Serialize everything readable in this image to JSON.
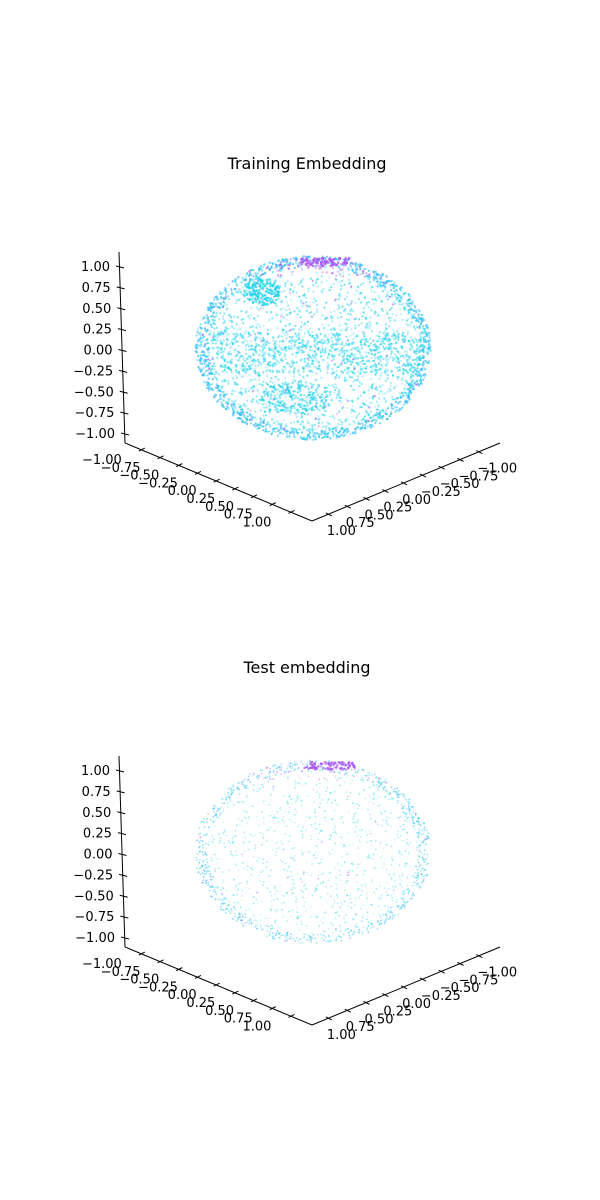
{
  "colors": {
    "primary": "#22d3ee",
    "secondary": "#a855f7",
    "edge": "#38bdf8",
    "axis": "#000000",
    "background": "#ffffff"
  },
  "chart_data": [
    {
      "type": "scatter3d",
      "title": "Training Embedding",
      "xlabel": "",
      "ylabel": "",
      "zlabel": "",
      "xlim": [
        -1.0,
        1.0
      ],
      "ylim": [
        -1.0,
        1.0
      ],
      "zlim": [
        -1.0,
        1.0
      ],
      "x_ticks": [
        "−1.00",
        "−0.75",
        "−0.50",
        "−0.25",
        "0.00",
        "0.25",
        "0.50",
        "0.75",
        "1.00"
      ],
      "y_ticks": [
        "−1.00",
        "−0.75",
        "−0.50",
        "−0.25",
        "0.00",
        "0.25",
        "0.50",
        "0.75",
        "1.00"
      ],
      "z_ticks": [
        "−1.00",
        "−0.75",
        "−0.50",
        "−0.25",
        "0.00",
        "0.25",
        "0.50",
        "0.75",
        "1.00"
      ],
      "z_tick_values": [
        -1.0,
        -0.75,
        -0.5,
        -0.25,
        0.0,
        0.25,
        0.5,
        0.75,
        1.0
      ],
      "surface": "unit sphere",
      "density": "dense",
      "grid": false,
      "colormap": "cool"
    },
    {
      "type": "scatter3d",
      "title": "Test embedding",
      "xlabel": "",
      "ylabel": "",
      "zlabel": "",
      "xlim": [
        -1.0,
        1.0
      ],
      "ylim": [
        -1.0,
        1.0
      ],
      "zlim": [
        -1.0,
        1.0
      ],
      "x_ticks": [
        "−1.00",
        "−0.75",
        "−0.50",
        "−0.25",
        "0.00",
        "0.25",
        "0.50",
        "0.75",
        "1.00"
      ],
      "y_ticks": [
        "−1.00",
        "−0.75",
        "−0.50",
        "−0.25",
        "0.00",
        "0.25",
        "0.50",
        "0.75",
        "1.00"
      ],
      "z_ticks": [
        "−1.00",
        "−0.75",
        "−0.50",
        "−0.25",
        "0.00",
        "0.25",
        "0.50",
        "0.75",
        "1.00"
      ],
      "z_tick_values": [
        -1.0,
        -0.75,
        -0.5,
        -0.25,
        0.0,
        0.25,
        0.5,
        0.75,
        1.0
      ],
      "surface": "unit sphere",
      "density": "sparse",
      "grid": false,
      "colormap": "cool"
    }
  ]
}
